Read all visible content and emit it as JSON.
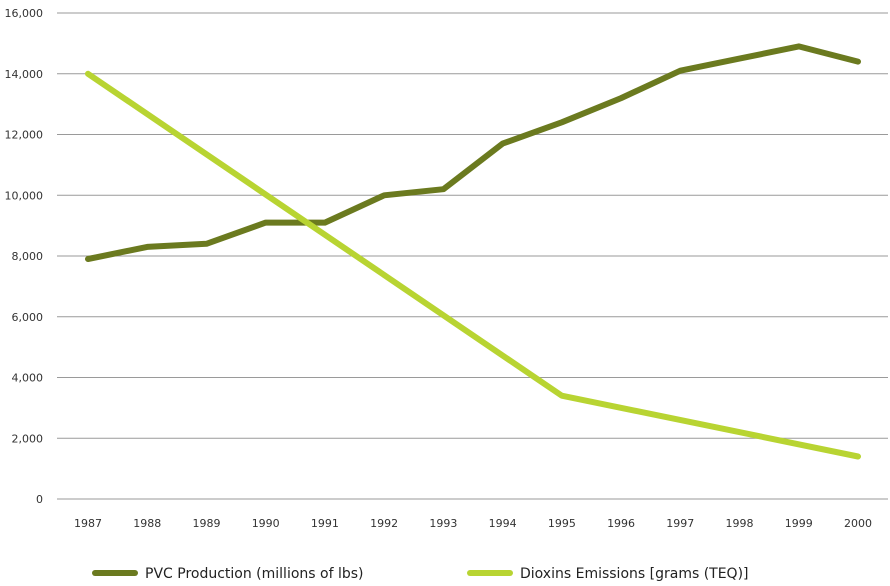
{
  "chart_data": {
    "type": "line",
    "title": "",
    "xlabel": "",
    "ylabel": "",
    "x": [
      "1987",
      "1988",
      "1989",
      "1990",
      "1991",
      "1992",
      "1993",
      "1994",
      "1995",
      "1996",
      "1997",
      "1998",
      "1999",
      "2000"
    ],
    "ylim": [
      0,
      16000
    ],
    "yticks": [
      0,
      2000,
      4000,
      6000,
      8000,
      10000,
      12000,
      14000,
      16000
    ],
    "ytick_labels": [
      "0",
      "2,000",
      "4,000",
      "6,000",
      "8,000",
      "10,000",
      "12,000",
      "14,000",
      "16,000"
    ],
    "grid": true,
    "legend_position": "bottom",
    "series": [
      {
        "name": "PVC Production (millions of lbs)",
        "color": "#6b7a1f",
        "values": [
          7900,
          8300,
          8400,
          9100,
          9100,
          10000,
          10200,
          11700,
          12400,
          13200,
          14100,
          14500,
          14900,
          14400
        ]
      },
      {
        "name": "Dioxins Emissions [grams (TEQ)]",
        "color": "#b8d432",
        "values": [
          14000,
          null,
          null,
          null,
          null,
          null,
          null,
          null,
          3400,
          null,
          null,
          null,
          null,
          1400
        ]
      }
    ]
  }
}
